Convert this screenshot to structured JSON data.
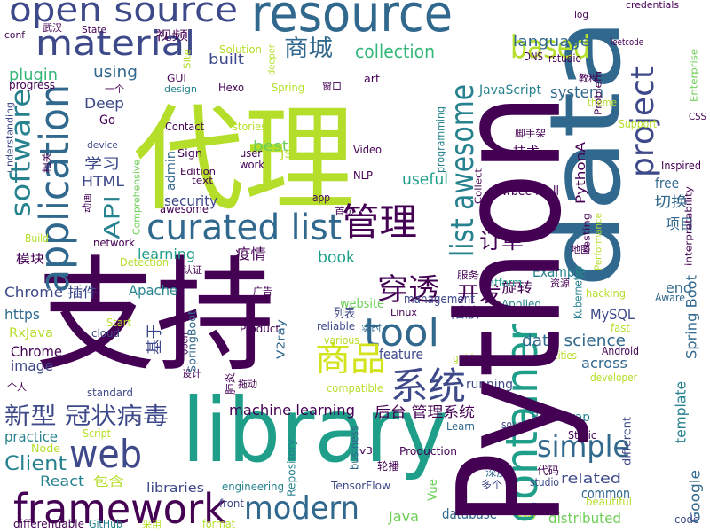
{
  "words": [
    "代理",
    "支持",
    "library",
    "data",
    "resource",
    "open source",
    "container",
    "framework",
    "material",
    "application",
    "curated list",
    "based",
    "project",
    "list awesome",
    "software",
    "API",
    "web",
    "modern",
    "simple",
    "tool",
    "管理",
    "系统",
    "商品",
    "穿透",
    "订单",
    "开发",
    "新型 冠状病毒",
    "Client",
    "collection",
    "商城",
    "language",
    "system",
    "plugin",
    "using",
    "built",
    "Deep",
    "best",
    "学习",
    "HTML",
    "security",
    "learning",
    "疫情",
    "book",
    "useful",
    "Example",
    "free",
    "切换",
    "项目",
    "end",
    "MySQL",
    "Spring Boot",
    "Chrome 插件",
    "模块",
    "https",
    "RxJava",
    "Chrome",
    "image",
    "practice",
    "Apache",
    "列表",
    "website",
    "management",
    "旋转",
    "data science",
    "across",
    "feature",
    "播放",
    "machine learning",
    "后台 管理系统",
    "running",
    "Bootstrap",
    "template",
    "related",
    "common",
    "distributed",
    "Google",
    "database",
    "Java",
    "Vue",
    "React",
    "包含",
    "libraries",
    "engineering",
    "TensorFlow",
    "轮播",
    "Production",
    "Learn",
    "source",
    "代码",
    "深度",
    "多个",
    "studio",
    "beautiful",
    "code",
    "easy",
    "Static",
    "different",
    "developer",
    "entities",
    "Android",
    "fast",
    "Kubernetes",
    "hacking",
    "Aware",
    "interpretability",
    "Performance",
    "testing",
    "地图",
    "资源",
    "Applied",
    "platform",
    "服务",
    "实时",
    "Linux",
    "reliable",
    "various",
    "guide",
    "compatible",
    "Repository",
    "business",
    "front",
    "v3",
    "V2ray",
    "拖动",
    "肺炎",
    "设计",
    "open",
    "SpringBoot",
    "基于",
    "Product",
    "认证",
    "广告",
    "Detection",
    "network",
    "Build",
    "Start",
    "cloud",
    "standard",
    "个人",
    "Node",
    "Script",
    "differentiable",
    "GitHub",
    "采用",
    "format",
    "admin",
    "Comprehensive",
    "awesome",
    "动画",
    "app",
    "NLP",
    "Video",
    "JS",
    "user",
    "work",
    "Sign",
    "Edition",
    "text",
    "Contact",
    "stories",
    "Spring",
    "Hexo",
    "GUI",
    "design",
    "Site",
    "视频",
    "Solution",
    "deeper",
    "窗口",
    "art",
    "programming",
    "JavaScript",
    "DNS",
    "rstudio",
    "leetcode",
    "log",
    "credentials",
    "Problem",
    "教程",
    "theme",
    "Support",
    "CSS",
    "Enterprise",
    "Inspired",
    "PythonA",
    "脚手架",
    "技术",
    "Collect",
    "newbee mall",
    "首页",
    "Go",
    "device",
    "一个",
    "progress",
    "understanding",
    "相关",
    "conf",
    "武汉",
    "State",
    "Python"
  ]
}
